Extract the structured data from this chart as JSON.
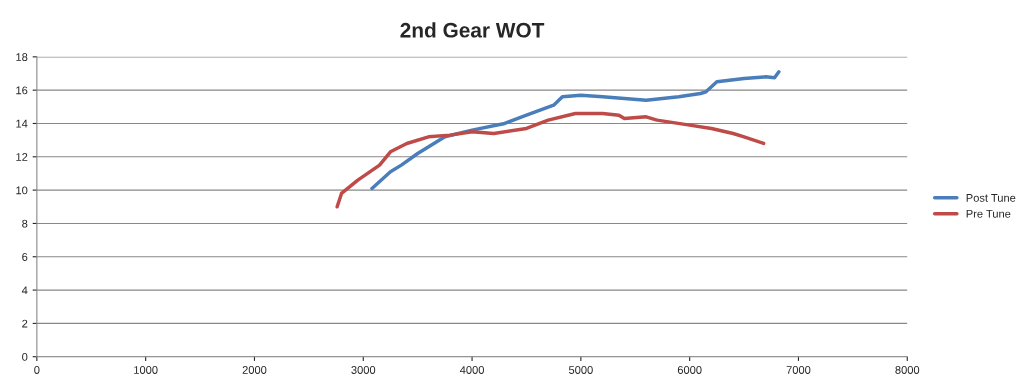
{
  "chart_data": {
    "type": "line",
    "title": "2nd Gear WOT",
    "xlim": [
      0,
      8000
    ],
    "xticks": [
      0,
      1000,
      2000,
      3000,
      4000,
      5000,
      6000,
      7000,
      8000
    ],
    "ylim": [
      0,
      18
    ],
    "yticks": [
      0,
      2,
      4,
      6,
      8,
      10,
      12,
      14,
      16,
      18
    ],
    "grid": "y",
    "legend": "right",
    "marker": "none",
    "line_style": "solid",
    "series": [
      {
        "name": "Post Tune",
        "color": "#4a7ebb",
        "x": [
          3080,
          3250,
          3350,
          3500,
          3750,
          4000,
          4300,
          4500,
          4750,
          4830,
          5000,
          5200,
          5600,
          5900,
          6100,
          6150,
          6250,
          6500,
          6700,
          6780,
          6820
        ],
        "values": [
          10.1,
          11.1,
          11.5,
          12.2,
          13.2,
          13.6,
          14.0,
          14.5,
          15.1,
          15.6,
          15.7,
          15.6,
          15.4,
          15.6,
          15.8,
          15.9,
          16.5,
          16.7,
          16.8,
          16.75,
          17.1
        ]
      },
      {
        "name": "Pre Tune",
        "color": "#be4b48",
        "x": [
          2760,
          2800,
          2950,
          3150,
          3250,
          3400,
          3600,
          3800,
          4000,
          4200,
          4500,
          4700,
          4950,
          5200,
          5350,
          5400,
          5600,
          5700,
          6000,
          6200,
          6400,
          6500,
          6680
        ],
        "values": [
          9.0,
          9.8,
          10.6,
          11.5,
          12.3,
          12.8,
          13.2,
          13.3,
          13.5,
          13.4,
          13.7,
          14.2,
          14.6,
          14.6,
          14.5,
          14.3,
          14.4,
          14.2,
          13.9,
          13.7,
          13.4,
          13.2,
          12.8
        ]
      }
    ]
  }
}
